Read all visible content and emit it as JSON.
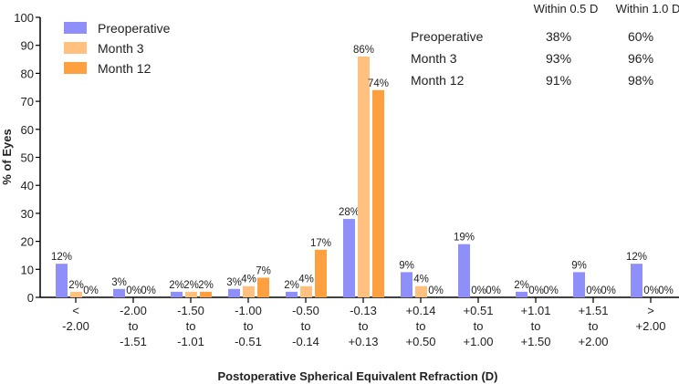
{
  "chart_data": {
    "type": "bar",
    "title": "",
    "xlabel": "Postoperative Spherical Equivalent Refraction (D)",
    "ylabel": "% of Eyes",
    "ylim": [
      0,
      100
    ],
    "yticks": [
      0,
      10,
      20,
      30,
      40,
      50,
      60,
      70,
      80,
      90,
      100
    ],
    "grid": false,
    "legend_position": "top-left",
    "categories": [
      [
        "<",
        "-2.00"
      ],
      [
        "-2.00",
        "to",
        "-1.51"
      ],
      [
        "-1.50",
        "to",
        "-1.01"
      ],
      [
        "-1.00",
        "to",
        "-0.51"
      ],
      [
        "-0.50",
        "to",
        "-0.14"
      ],
      [
        "-0.13",
        "to",
        "+0.13"
      ],
      [
        "+0.14",
        "to",
        "+0.50"
      ],
      [
        "+0.51",
        "to",
        "+1.00"
      ],
      [
        "+1.01",
        "to",
        "+1.50"
      ],
      [
        "+1.51",
        "to",
        "+2.00"
      ],
      [
        ">",
        "+2.00"
      ]
    ],
    "series": [
      {
        "name": "Preoperative",
        "color": "#8f8ffa",
        "values": [
          12,
          3,
          2,
          3,
          2,
          28,
          9,
          19,
          2,
          9,
          12
        ]
      },
      {
        "name": "Month 3",
        "color": "#ffc080",
        "values": [
          2,
          0,
          2,
          4,
          4,
          86,
          4,
          0,
          0,
          0,
          0
        ]
      },
      {
        "name": "Month 12",
        "color": "#ffa040",
        "values": [
          0,
          0,
          2,
          7,
          17,
          74,
          0,
          0,
          0,
          0,
          0
        ]
      }
    ],
    "summary_table": {
      "headers": [
        "Within 0.5 D",
        "Within 1.0 D"
      ],
      "rows": [
        {
          "label": "Preoperative",
          "values": [
            "38%",
            "60%"
          ]
        },
        {
          "label": "Month 3",
          "values": [
            "93%",
            "96%"
          ]
        },
        {
          "label": "Month 12",
          "values": [
            "91%",
            "98%"
          ]
        }
      ]
    }
  }
}
